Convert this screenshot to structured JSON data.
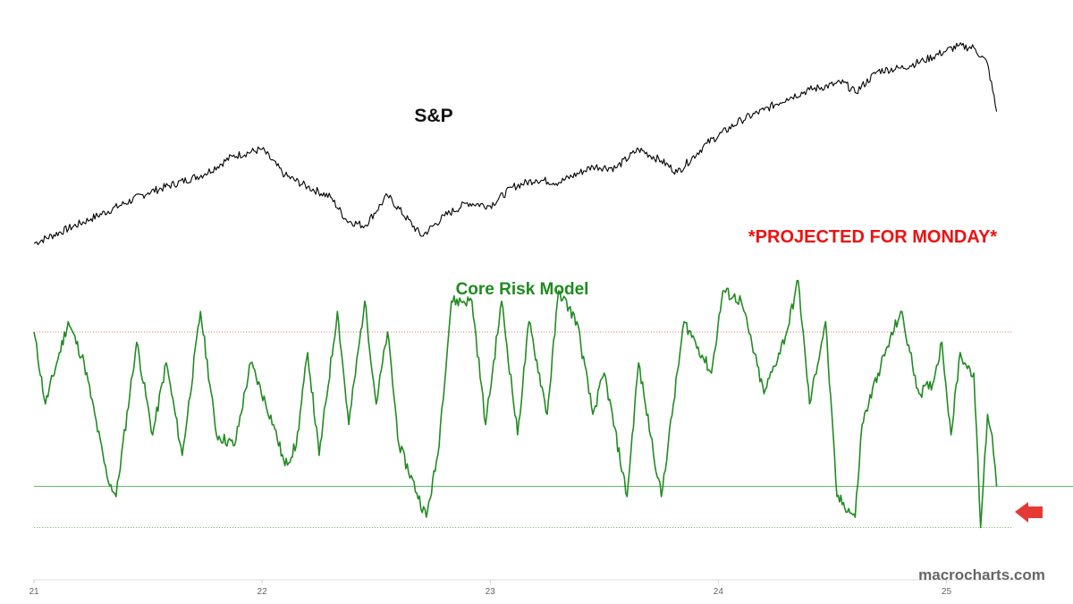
{
  "chart_data": [
    {
      "type": "line",
      "title": "S&P",
      "x_tick_labels": [
        "21",
        "22",
        "23",
        "24",
        "25"
      ],
      "x": [
        2021.0,
        2021.25,
        2021.5,
        2021.75,
        2021.87,
        2022.0,
        2022.1,
        2022.2,
        2022.3,
        2022.37,
        2022.45,
        2022.55,
        2022.7,
        2022.8,
        2022.9,
        2023.0,
        2023.1,
        2023.2,
        2023.3,
        2023.45,
        2023.55,
        2023.65,
        2023.75,
        2023.82,
        2023.95,
        2024.1,
        2024.2,
        2024.3,
        2024.4,
        2024.55,
        2024.6,
        2024.7,
        2024.8,
        2024.9,
        2025.0,
        2025.05,
        2025.12,
        2025.18,
        2025.22
      ],
      "values": [
        0.3,
        2.0,
        3.8,
        5.1,
        6.3,
        6.8,
        5.0,
        4.2,
        3.5,
        1.9,
        1.5,
        3.6,
        0.8,
        2.2,
        3.1,
        2.9,
        4.2,
        4.7,
        4.5,
        5.6,
        5.5,
        6.8,
        6.0,
        5.2,
        7.2,
        8.8,
        9.5,
        10.3,
        10.9,
        11.4,
        10.7,
        12.2,
        12.4,
        12.9,
        13.6,
        13.9,
        13.8,
        12.7,
        9.4
      ],
      "color": "#000000"
    },
    {
      "type": "line",
      "title": "Core Risk Model",
      "x": [
        2021.0,
        2021.05,
        2021.1,
        2021.15,
        2021.22,
        2021.32,
        2021.36,
        2021.45,
        2021.52,
        2021.58,
        2021.65,
        2021.73,
        2021.8,
        2021.88,
        2021.95,
        2022.05,
        2022.1,
        2022.15,
        2022.2,
        2022.25,
        2022.33,
        2022.38,
        2022.45,
        2022.5,
        2022.55,
        2022.6,
        2022.72,
        2022.77,
        2022.83,
        2022.92,
        2022.98,
        2023.05,
        2023.12,
        2023.17,
        2023.25,
        2023.3,
        2023.38,
        2023.45,
        2023.5,
        2023.6,
        2023.65,
        2023.68,
        2023.75,
        2023.85,
        2023.9,
        2023.97,
        2024.02,
        2024.1,
        2024.2,
        2024.3,
        2024.35,
        2024.4,
        2024.47,
        2024.52,
        2024.6,
        2024.63,
        2024.7,
        2024.8,
        2024.88,
        2024.94,
        2024.98,
        2025.02,
        2025.06,
        2025.08,
        2025.12,
        2025.15,
        2025.18,
        2025.2,
        2025.22
      ],
      "values": [
        1.6,
        0.9,
        1.3,
        1.7,
        1.3,
        0.2,
        0.0,
        1.5,
        0.6,
        1.3,
        0.4,
        1.8,
        0.6,
        0.5,
        1.3,
        0.7,
        0.3,
        0.5,
        1.4,
        0.4,
        1.8,
        0.7,
        1.9,
        0.9,
        1.6,
        0.5,
        -0.2,
        0.4,
        1.9,
        1.9,
        0.7,
        1.9,
        0.6,
        1.7,
        0.8,
        2.0,
        1.7,
        0.8,
        1.2,
        0.0,
        1.3,
        0.9,
        0.0,
        1.7,
        1.5,
        1.2,
        2.0,
        1.9,
        1.0,
        1.6,
        2.1,
        0.9,
        1.7,
        0.0,
        -0.2,
        0.7,
        1.2,
        1.8,
        1.0,
        1.1,
        1.5,
        0.6,
        1.4,
        1.3,
        1.2,
        -0.3,
        0.8,
        0.6,
        0.1
      ],
      "reference_lines": [
        {
          "value": 1.6,
          "style": "dotted",
          "color": "#e57373"
        },
        {
          "value": 0.1,
          "style": "solid",
          "color": "#66bb6a"
        },
        {
          "value": -0.3,
          "style": "dotted",
          "color": "#66bb6a"
        }
      ],
      "color": "#228b22"
    }
  ],
  "annotation": "*PROJECTED FOR MONDAY*",
  "source": "macrocharts.com",
  "colors": {
    "sp_line": "#000000",
    "risk_line": "#228b22",
    "arrow": "#e53935"
  },
  "icons": {
    "arrow": "left-arrow-icon"
  }
}
